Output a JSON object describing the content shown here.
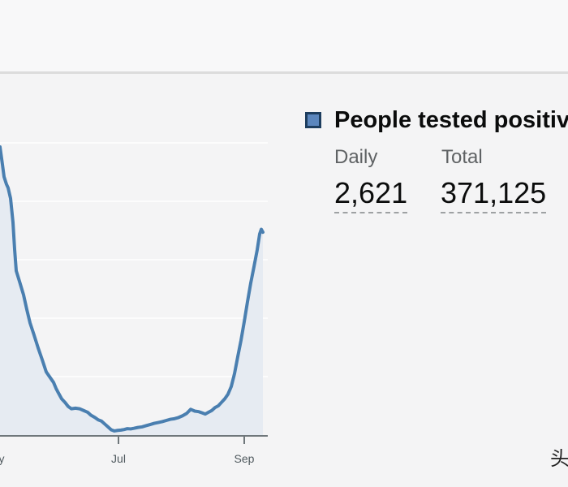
{
  "chart_data": {
    "type": "area",
    "title": "People tested positive",
    "x_tick_labels": [
      "y",
      "Jul",
      "Sep"
    ],
    "x": [
      0,
      3,
      5,
      8,
      10,
      13,
      16,
      18,
      20,
      24,
      29,
      33,
      37,
      42,
      47,
      52,
      57,
      62,
      66,
      69,
      72,
      76,
      80,
      84,
      88,
      93,
      98,
      103,
      108,
      112,
      117,
      121,
      125,
      129,
      133,
      137,
      141,
      145,
      149,
      153,
      157,
      161,
      165,
      170,
      175,
      180,
      185,
      190,
      195,
      200,
      205,
      210,
      215,
      220,
      225,
      230,
      235,
      240,
      245,
      249,
      253,
      257,
      261,
      265,
      269,
      273,
      277,
      281,
      285,
      289,
      293,
      297,
      301,
      305,
      309,
      313,
      317,
      320,
      322,
      324
    ],
    "values": [
      4930,
      4630,
      4420,
      4290,
      4230,
      4050,
      3640,
      3180,
      2810,
      2630,
      2400,
      2150,
      1920,
      1710,
      1490,
      1290,
      1080,
      980,
      900,
      800,
      720,
      620,
      560,
      490,
      450,
      460,
      450,
      420,
      390,
      340,
      300,
      260,
      240,
      190,
      140,
      90,
      70,
      80,
      85,
      95,
      110,
      105,
      115,
      130,
      140,
      160,
      180,
      200,
      215,
      230,
      250,
      270,
      280,
      300,
      330,
      370,
      440,
      410,
      400,
      380,
      360,
      390,
      420,
      470,
      500,
      560,
      620,
      700,
      830,
      1050,
      1340,
      1620,
      1940,
      2280,
      2600,
      2880,
      3170,
      3440,
      3520,
      3470
    ],
    "ylim": [
      0,
      5200
    ],
    "grid": true,
    "line_color": "#4a7fb0",
    "fill_color": "#e6ebf2"
  },
  "headline": "People tested positive",
  "metrics": [
    {
      "label": "Daily",
      "value": "2,621"
    },
    {
      "label": "Total",
      "value": "371,125"
    }
  ],
  "watermark": "头"
}
